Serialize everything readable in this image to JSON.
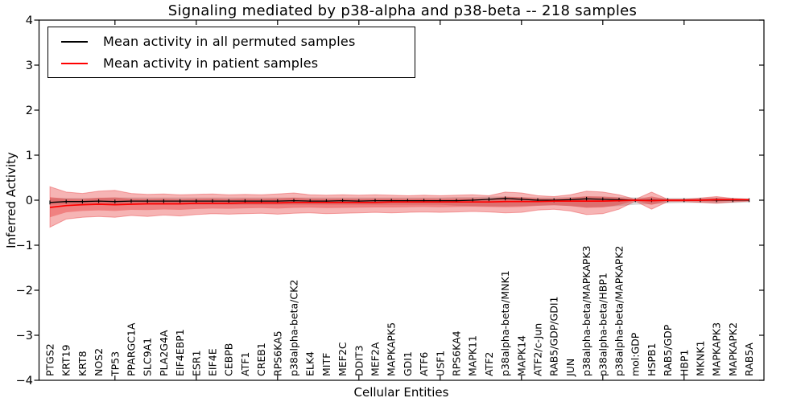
{
  "chart_data": {
    "type": "line",
    "title": "Signaling mediated by p38-alpha and p38-beta -- 218 samples",
    "xlabel": "Cellular Entities",
    "ylabel": "Inferred Activity",
    "ylim": [
      -4,
      4
    ],
    "yticks": [
      4,
      3,
      2,
      1,
      0,
      -1,
      -2,
      -3,
      -4
    ],
    "grid": false,
    "legend_position": "upper left",
    "x_major_tick_indices": [
      4,
      9,
      14,
      19,
      24,
      29,
      34,
      39
    ],
    "categories": [
      "PTGS2",
      "KRT19",
      "KRT8",
      "NOS2",
      "TP53",
      "PPARGC1A",
      "SLC9A1",
      "PLA2G4A",
      "EIF4EBP1",
      "ESR1",
      "EIF4E",
      "CEBPB",
      "ATF1",
      "CREB1",
      "RPS6KA5",
      "p38alpha-beta/CK2",
      "ELK4",
      "MITF",
      "MEF2C",
      "DDIT3",
      "MEF2A",
      "MAPKAPK5",
      "GDI1",
      "ATF6",
      "USF1",
      "RPS6KA4",
      "MAPK11",
      "ATF2",
      "p38alpha-beta/MNK1",
      "MAPK14",
      "ATF2/c-Jun",
      "RAB5/GDP/GDI1",
      "JUN",
      "p38alpha-beta/MAPKAPK3",
      "p38alpha-beta/HBP1",
      "p38alpha-beta/MAPKAPK2",
      "mol:GDP",
      "HSPB1",
      "RAB5/GDP",
      "HBP1",
      "MKNK1",
      "MAPKAPK3",
      "MAPKAPK2",
      "RAB5A"
    ],
    "series": [
      {
        "name": "Mean activity in all permuted samples",
        "color": "#000000",
        "marker": "vertical-dash",
        "values": [
          -0.05,
          -0.03,
          -0.03,
          -0.02,
          -0.03,
          -0.02,
          -0.02,
          -0.02,
          -0.02,
          -0.02,
          -0.02,
          -0.02,
          -0.02,
          -0.02,
          -0.02,
          -0.01,
          -0.02,
          -0.02,
          -0.01,
          -0.02,
          -0.01,
          -0.01,
          -0.01,
          -0.01,
          -0.01,
          -0.01,
          0.0,
          0.02,
          0.04,
          0.02,
          0.0,
          0.0,
          0.01,
          0.03,
          0.02,
          0.01,
          0.0,
          0.0,
          0.0,
          0.0,
          0.0,
          0.0,
          0.0,
          0.0
        ]
      },
      {
        "name": "Mean activity in patient samples",
        "color": "#ff0000",
        "marker": "none",
        "values": [
          -0.16,
          -0.12,
          -0.1,
          -0.09,
          -0.1,
          -0.09,
          -0.08,
          -0.08,
          -0.08,
          -0.07,
          -0.07,
          -0.07,
          -0.06,
          -0.06,
          -0.06,
          -0.05,
          -0.05,
          -0.05,
          -0.05,
          -0.05,
          -0.05,
          -0.04,
          -0.04,
          -0.04,
          -0.04,
          -0.04,
          -0.04,
          -0.04,
          -0.03,
          -0.03,
          -0.03,
          -0.02,
          -0.02,
          -0.02,
          -0.02,
          -0.01,
          0.0,
          -0.01,
          0.0,
          0.0,
          0.0,
          0.01,
          0.01,
          0.01
        ]
      }
    ],
    "bands": [
      {
        "name": "permuted-samples-activity-range",
        "color": "#787878",
        "opacity": 0.3,
        "upper": [
          0.05,
          0.05,
          0.05,
          0.05,
          0.06,
          0.06,
          0.06,
          0.06,
          0.06,
          0.06,
          0.06,
          0.06,
          0.06,
          0.06,
          0.06,
          0.06,
          0.06,
          0.06,
          0.06,
          0.06,
          0.06,
          0.06,
          0.06,
          0.06,
          0.06,
          0.07,
          0.07,
          0.08,
          0.08,
          0.07,
          0.06,
          0.06,
          0.07,
          0.08,
          0.08,
          0.07,
          0.06,
          0.06,
          0.05,
          0.05,
          0.05,
          0.06,
          0.05,
          0.04
        ],
        "lower": [
          -0.1,
          -0.09,
          -0.09,
          -0.09,
          -0.1,
          -0.1,
          -0.1,
          -0.1,
          -0.1,
          -0.1,
          -0.1,
          -0.1,
          -0.1,
          -0.1,
          -0.1,
          -0.1,
          -0.1,
          -0.1,
          -0.1,
          -0.1,
          -0.1,
          -0.1,
          -0.1,
          -0.1,
          -0.1,
          -0.12,
          -0.13,
          -0.14,
          -0.14,
          -0.13,
          -0.12,
          -0.11,
          -0.13,
          -0.16,
          -0.15,
          -0.13,
          -0.1,
          -0.09,
          -0.07,
          -0.06,
          -0.06,
          -0.07,
          -0.06,
          -0.05
        ]
      },
      {
        "name": "patient-samples-activity-range-outer",
        "color": "#e41a1c",
        "opacity": 0.33,
        "upper": [
          0.3,
          0.18,
          0.15,
          0.2,
          0.22,
          0.15,
          0.13,
          0.14,
          0.12,
          0.13,
          0.14,
          0.12,
          0.13,
          0.12,
          0.14,
          0.16,
          0.12,
          0.11,
          0.12,
          0.11,
          0.12,
          0.11,
          0.1,
          0.11,
          0.1,
          0.11,
          0.12,
          0.1,
          0.18,
          0.16,
          0.1,
          0.08,
          0.12,
          0.2,
          0.18,
          0.12,
          0.02,
          0.18,
          0.02,
          0.02,
          0.05,
          0.08,
          0.04,
          0.02
        ],
        "lower": [
          -0.6,
          -0.42,
          -0.38,
          -0.36,
          -0.38,
          -0.34,
          -0.36,
          -0.33,
          -0.35,
          -0.32,
          -0.3,
          -0.31,
          -0.3,
          -0.29,
          -0.31,
          -0.29,
          -0.28,
          -0.3,
          -0.29,
          -0.28,
          -0.27,
          -0.28,
          -0.27,
          -0.26,
          -0.27,
          -0.26,
          -0.25,
          -0.26,
          -0.28,
          -0.27,
          -0.22,
          -0.2,
          -0.24,
          -0.32,
          -0.3,
          -0.2,
          -0.02,
          -0.2,
          -0.03,
          -0.03,
          -0.05,
          -0.07,
          -0.04,
          -0.02
        ]
      },
      {
        "name": "patient-samples-activity-range-inner",
        "color": "#e41a1c",
        "opacity": 0.33,
        "derived_scale_of_outer": 0.5
      }
    ]
  },
  "legend": {
    "entries": [
      {
        "label": "Mean activity in all permuted samples",
        "color": "#000000"
      },
      {
        "label": "Mean activity in patient samples",
        "color": "#ff0000"
      }
    ]
  }
}
